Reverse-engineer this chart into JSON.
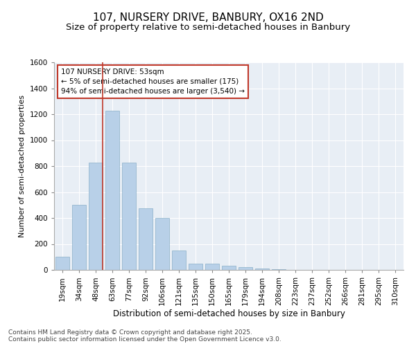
{
  "title": "107, NURSERY DRIVE, BANBURY, OX16 2ND",
  "subtitle": "Size of property relative to semi-detached houses in Banbury",
  "xlabel": "Distribution of semi-detached houses by size in Banbury",
  "ylabel": "Number of semi-detached properties",
  "categories": [
    "19sqm",
    "34sqm",
    "48sqm",
    "63sqm",
    "77sqm",
    "92sqm",
    "106sqm",
    "121sqm",
    "135sqm",
    "150sqm",
    "165sqm",
    "179sqm",
    "194sqm",
    "208sqm",
    "223sqm",
    "237sqm",
    "252sqm",
    "266sqm",
    "281sqm",
    "295sqm",
    "310sqm"
  ],
  "values": [
    100,
    500,
    825,
    1225,
    825,
    475,
    400,
    150,
    50,
    50,
    30,
    20,
    10,
    5,
    2,
    1,
    0,
    0,
    0,
    0,
    0
  ],
  "bar_color": "#b8d0e8",
  "bar_edge_color": "#8aafc8",
  "vline_color": "#c0392b",
  "vline_x": 1.5,
  "annotation_text": "107 NURSERY DRIVE: 53sqm\n← 5% of semi-detached houses are smaller (175)\n94% of semi-detached houses are larger (3,540) →",
  "annotation_box_color": "#c0392b",
  "ylim": [
    0,
    1600
  ],
  "yticks": [
    0,
    200,
    400,
    600,
    800,
    1000,
    1200,
    1400,
    1600
  ],
  "bg_color": "#e8eef5",
  "footer_text": "Contains HM Land Registry data © Crown copyright and database right 2025.\nContains public sector information licensed under the Open Government Licence v3.0.",
  "title_fontsize": 11,
  "subtitle_fontsize": 9.5,
  "xlabel_fontsize": 8.5,
  "ylabel_fontsize": 8,
  "tick_fontsize": 7.5,
  "annotation_fontsize": 7.5,
  "footer_fontsize": 6.5
}
